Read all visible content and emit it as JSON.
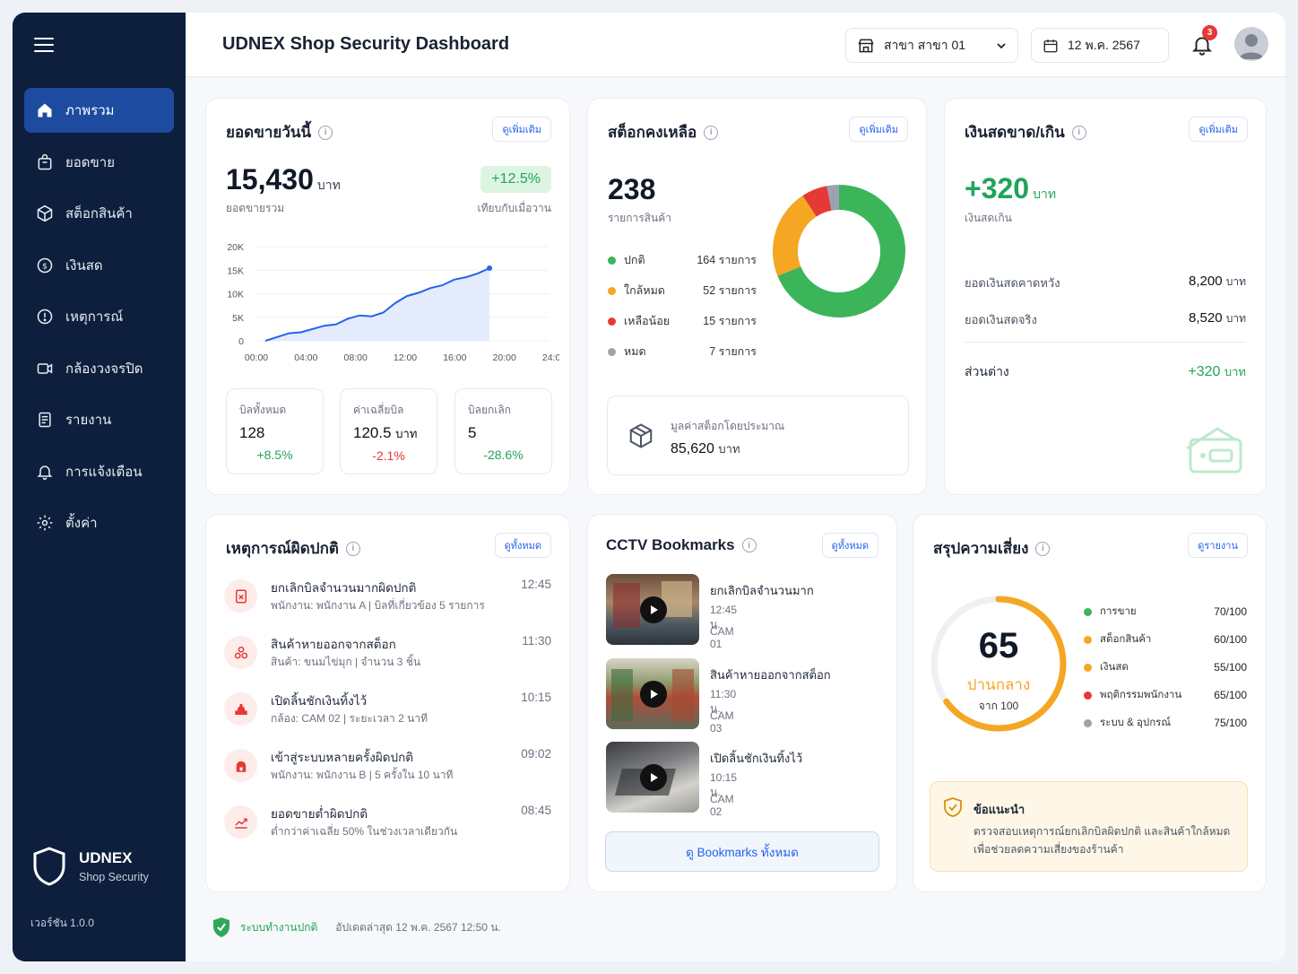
{
  "app": {
    "title": "UDNEX Shop Security Dashboard",
    "branch": "สาขา สาขา 01",
    "date": "12 พ.ค. 2567",
    "notification_count": "3"
  },
  "sidebar": {
    "items": [
      {
        "label": "ภาพรวม",
        "icon": "home-icon"
      },
      {
        "label": "ยอดขาย",
        "icon": "bag-icon"
      },
      {
        "label": "สต็อกสินค้า",
        "icon": "box-icon"
      },
      {
        "label": "เงินสด",
        "icon": "money-icon"
      },
      {
        "label": "เหตุการณ์",
        "icon": "alert-icon"
      },
      {
        "label": "กล้องวงจรปิด",
        "icon": "camera-icon"
      },
      {
        "label": "รายงาน",
        "icon": "report-icon"
      },
      {
        "label": "การแจ้งเตือน",
        "icon": "bell-icon"
      },
      {
        "label": "ตั้งค่า",
        "icon": "gear-icon"
      }
    ],
    "brand_name": "UDNEX",
    "brand_sub": "Shop Security",
    "version": "เวอร์ชัน 1.0.0"
  },
  "sales": {
    "title": "ยอดขายวันนี้",
    "link": "ดูเพิ่มเติม",
    "total": "15,430",
    "unit": "บาท",
    "total_label": "ยอดขายรวม",
    "change": "+12.5%",
    "change_label": "เทียบกับเมื่อวาน",
    "stats": [
      {
        "label": "บิลทั้งหมด",
        "value": "128",
        "unit": "",
        "change": "+8.5%"
      },
      {
        "label": "ค่าเฉลี่ยบิล",
        "value": "120.5",
        "unit": "บาท",
        "change": "-2.1%"
      },
      {
        "label": "บิลยกเลิก",
        "value": "5",
        "unit": "",
        "change": "-28.6%"
      }
    ]
  },
  "chart_data": {
    "type": "area",
    "x_ticks": [
      "00:00",
      "04:00",
      "08:00",
      "12:00",
      "16:00",
      "20:00",
      "24:00"
    ],
    "y_ticks": [
      "0",
      "5K",
      "10K",
      "15K",
      "20K"
    ],
    "ylim": [
      0,
      20000
    ],
    "x": [
      0,
      1,
      2,
      3,
      4,
      5,
      6,
      7,
      8,
      9,
      10,
      11,
      12,
      13,
      14,
      15,
      16,
      17,
      18,
      19
    ],
    "values": [
      0,
      800,
      1600,
      1800,
      2500,
      3200,
      3500,
      4700,
      5400,
      5200,
      6000,
      8000,
      9500,
      10200,
      11200,
      11800,
      13000,
      13500,
      14300,
      15430
    ]
  },
  "stock": {
    "title": "สต็อกคงเหลือ",
    "link": "ดูเพิ่มเติม",
    "total": "238",
    "total_label": "รายการสินค้า",
    "legend": [
      {
        "label": "ปกติ",
        "count": "164 รายการ",
        "value": 164,
        "color": "#3cb55a"
      },
      {
        "label": "ใกล้หมด",
        "count": "52 รายการ",
        "value": 52,
        "color": "#f5a623"
      },
      {
        "label": "เหลือน้อย",
        "count": "15 รายการ",
        "value": 15,
        "color": "#e53935"
      },
      {
        "label": "หมด",
        "count": "7 รายการ",
        "value": 7,
        "color": "#9ca3af"
      }
    ],
    "value_label": "มูลค่าสต็อกโดยประมาณ",
    "value": "85,620",
    "value_unit": "บาท"
  },
  "cash": {
    "title": "เงินสดขาด/เกิน",
    "link": "ดูเพิ่มเติม",
    "amount": "+320",
    "unit": "บาท",
    "amount_label": "เงินสดเกิน",
    "expected_label": "ยอดเงินสดคาดหวัง",
    "expected": "8,200",
    "actual_label": "ยอดเงินสดจริง",
    "actual": "8,520",
    "diff_label": "ส่วนต่าง",
    "diff": "+320"
  },
  "events": {
    "title": "เหตุการณ์ผิดปกติ",
    "link": "ดูทั้งหมด",
    "items": [
      {
        "title": "ยกเลิกบิลจำนวนมากผิดปกติ",
        "sub": "พนักงาน: พนักงาน A  |  บิลที่เกี่ยวข้อง 5 รายการ",
        "time": "12:45"
      },
      {
        "title": "สินค้าหายออกจากสต็อก",
        "sub": "สินค้า: ขนมไข่มุก  |  จำนวน 3 ชิ้น",
        "time": "11:30"
      },
      {
        "title": "เปิดลิ้นชักเงินทิ้งไว้",
        "sub": "กล้อง: CAM 02  |  ระยะเวลา 2 นาที",
        "time": "10:15"
      },
      {
        "title": "เข้าสู่ระบบหลายครั้งผิดปกติ",
        "sub": "พนักงาน: พนักงาน B  |  5 ครั้งใน 10 นาที",
        "time": "09:02"
      },
      {
        "title": "ยอดขายต่ำผิดปกติ",
        "sub": "ต่ำกว่าค่าเฉลี่ย 50% ในช่วงเวลาเดียวกัน",
        "time": "08:45"
      }
    ]
  },
  "cctv": {
    "title": "CCTV Bookmarks",
    "link": "ดูทั้งหมด",
    "items": [
      {
        "title": "ยกเลิกบิลจำนวนมาก",
        "time": "12:45 น.",
        "cam": "CAM 01"
      },
      {
        "title": "สินค้าหายออกจากสต็อก",
        "time": "11:30 น.",
        "cam": "CAM 03"
      },
      {
        "title": "เปิดลิ้นชักเงินทิ้งไว้",
        "time": "10:15 น.",
        "cam": "CAM 02"
      }
    ],
    "all_button": "ดู Bookmarks ทั้งหมด"
  },
  "risk": {
    "title": "สรุปความเสี่ยง",
    "link": "ดูรายงาน",
    "score": "65",
    "score_value": 65,
    "level": "ปานกลาง",
    "out_of": "จาก 100",
    "items": [
      {
        "label": "การขาย",
        "score": "70/100",
        "color": "#3cb55a"
      },
      {
        "label": "สต็อกสินค้า",
        "score": "60/100",
        "color": "#f5a623"
      },
      {
        "label": "เงินสด",
        "score": "55/100",
        "color": "#f5a623"
      },
      {
        "label": "พฤติกรรมพนักงาน",
        "score": "65/100",
        "color": "#e53935"
      },
      {
        "label": "ระบบ & อุปกรณ์",
        "score": "75/100",
        "color": "#9ca3af"
      }
    ],
    "advice_title": "ข้อแนะนำ",
    "advice_line1": "ตรวจสอบเหตุการณ์ยกเลิกบิลผิดปกติ และสินค้าใกล้หมด",
    "advice_line2": "เพื่อช่วยลดความเสี่ยงของร้านค้า"
  },
  "footer": {
    "status": "ระบบทำงานปกติ",
    "updated": "อัปเดตล่าสุด 12 พ.ค. 2567 12:50 น."
  }
}
